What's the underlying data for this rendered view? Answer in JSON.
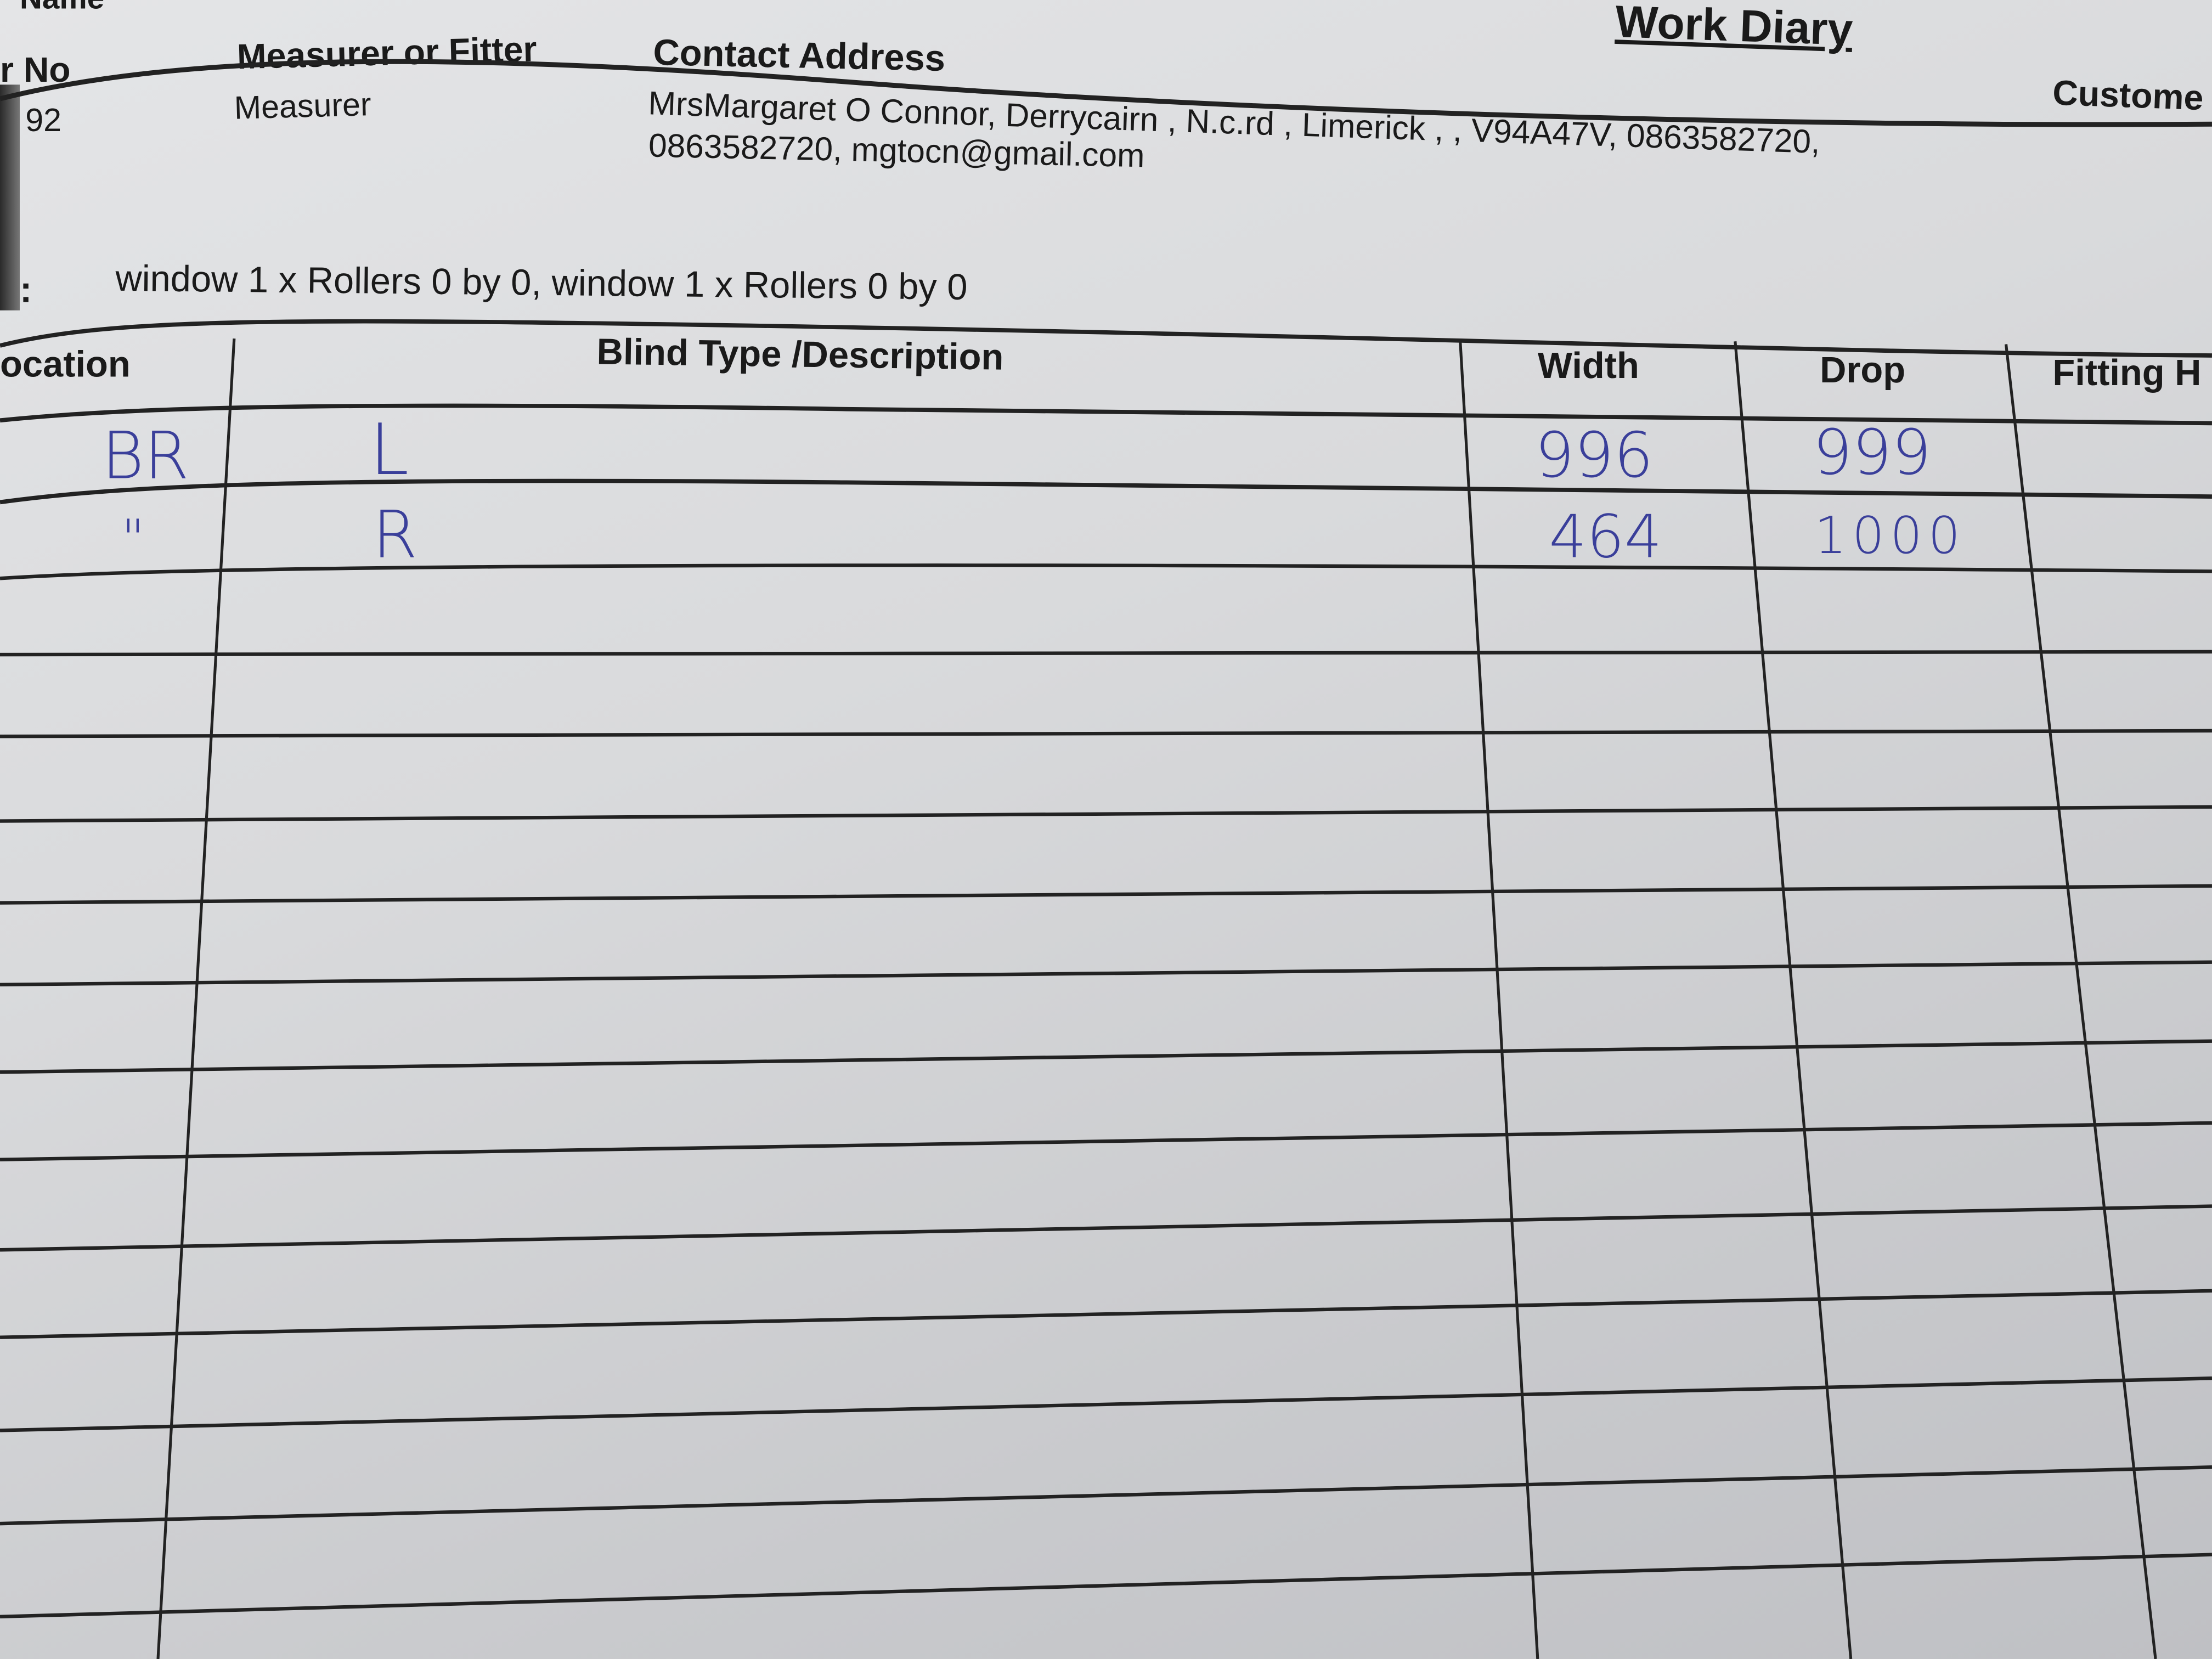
{
  "header": {
    "name_label": "Name",
    "title": "Work Diary",
    "order_no_label": "r No",
    "order_no_value": "92",
    "measurer_label": "Measurer or Fitter",
    "measurer_value": "Measurer",
    "contact_label": "Contact Address",
    "contact_line1": "MrsMargaret O Connor, Derrycairn , N.c.rd , Limerick , , V94A47V, 0863582720,",
    "contact_line2": "0863582720, mgtocn@gmail.com",
    "customer_label": "Custome"
  },
  "summary": {
    "colon": ":",
    "text": "window 1 x Rollers 0 by 0, window 1 x Rollers 0 by 0"
  },
  "table": {
    "columns": [
      "ocation",
      "Blind Type /Description",
      "Width",
      "Drop",
      "Fitting H"
    ],
    "rows": [
      {
        "location": "BR",
        "type": "L",
        "width": "996",
        "drop": "999"
      },
      {
        "location": "\"",
        "type": "R",
        "width": "464",
        "drop": "1000"
      }
    ]
  },
  "colors": {
    "ink_handwriting": "#3a3f9a",
    "paper": "#dcdddf"
  }
}
